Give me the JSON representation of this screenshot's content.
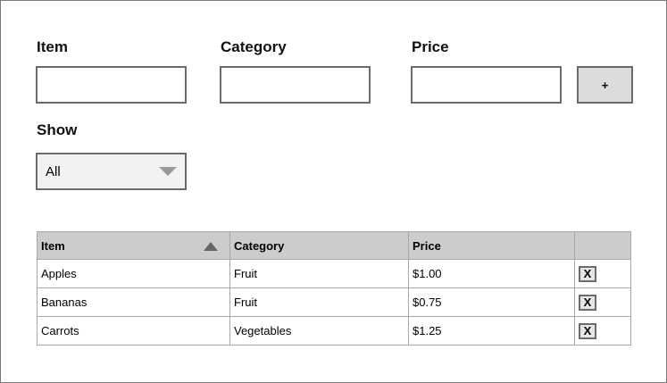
{
  "form": {
    "item_label": "Item",
    "category_label": "Category",
    "price_label": "Price",
    "item_value": "",
    "category_value": "",
    "price_value": "",
    "add_label": "+"
  },
  "filter": {
    "label": "Show",
    "selected": "All"
  },
  "table": {
    "headers": {
      "item": "Item",
      "category": "Category",
      "price": "Price"
    },
    "sort_column": "item",
    "sort_direction": "ascending",
    "rows": [
      {
        "item": "Apples",
        "category": "Fruit",
        "price": "$1.00",
        "delete_label": "X"
      },
      {
        "item": "Bananas",
        "category": "Fruit",
        "price": "$0.75",
        "delete_label": "X"
      },
      {
        "item": "Carrots",
        "category": "Vegetables",
        "price": "$1.25",
        "delete_label": "X"
      }
    ]
  },
  "colors": {
    "header_bg": "#cccccc",
    "button_bg": "#dcdcdc",
    "border": "#6b6b6b",
    "grid_line": "#a8a8a8",
    "select_bg": "#f2f2f2"
  },
  "icons": {
    "sort": "sort-ascending-icon",
    "dropdown": "caret-down-icon"
  }
}
